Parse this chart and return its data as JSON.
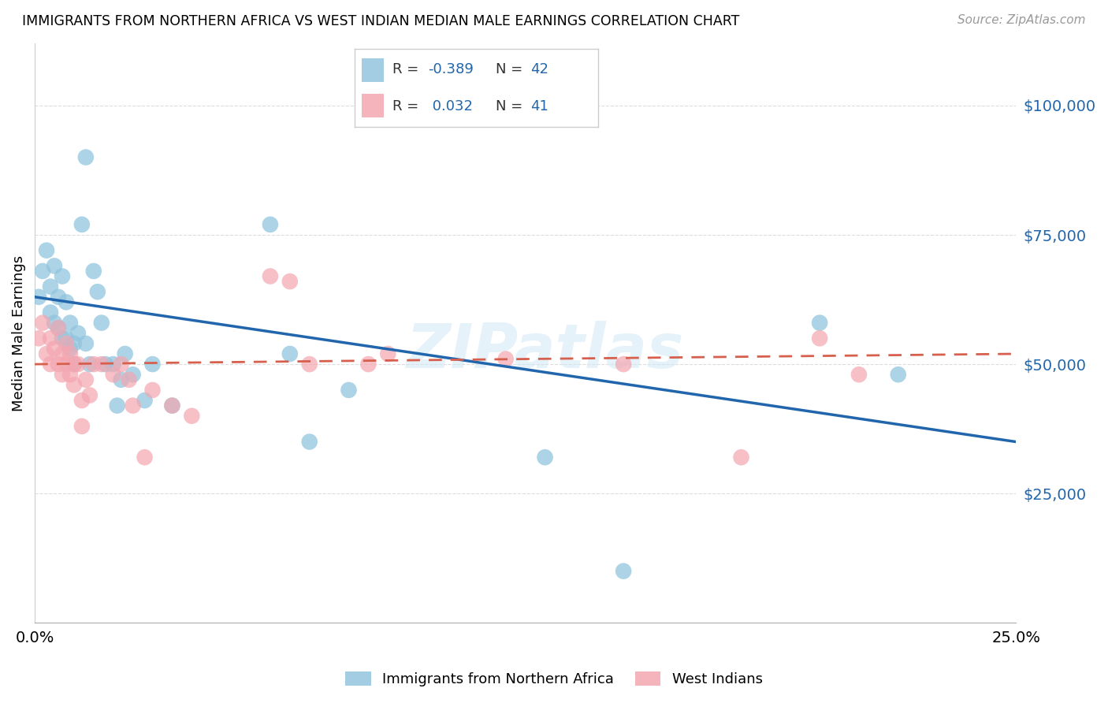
{
  "title": "IMMIGRANTS FROM NORTHERN AFRICA VS WEST INDIAN MEDIAN MALE EARNINGS CORRELATION CHART",
  "source": "Source: ZipAtlas.com",
  "ylabel": "Median Male Earnings",
  "ylim": [
    0,
    112000
  ],
  "xlim": [
    0.0,
    0.25
  ],
  "yticks": [
    25000,
    50000,
    75000,
    100000
  ],
  "ytick_labels": [
    "$25,000",
    "$50,000",
    "$75,000",
    "$100,000"
  ],
  "xtick_vals": [
    0.0,
    0.25
  ],
  "xtick_labels": [
    "0.0%",
    "25.0%"
  ],
  "blue_color": "#92C5DE",
  "blue_line_color": "#2166AC",
  "pink_color": "#F4A6B0",
  "pink_line_color": "#D6604D",
  "watermark": "ZIPatlas",
  "grid_color": "#DDDDDD",
  "blue_x": [
    0.001,
    0.002,
    0.003,
    0.004,
    0.004,
    0.005,
    0.005,
    0.006,
    0.006,
    0.007,
    0.007,
    0.008,
    0.008,
    0.009,
    0.009,
    0.01,
    0.01,
    0.011,
    0.012,
    0.013,
    0.013,
    0.014,
    0.015,
    0.016,
    0.017,
    0.018,
    0.02,
    0.021,
    0.022,
    0.023,
    0.025,
    0.028,
    0.03,
    0.035,
    0.06,
    0.065,
    0.07,
    0.08,
    0.13,
    0.15,
    0.2,
    0.22
  ],
  "blue_y": [
    63000,
    68000,
    72000,
    65000,
    60000,
    69000,
    58000,
    63000,
    57000,
    67000,
    55000,
    62000,
    55000,
    58000,
    53000,
    54000,
    50000,
    56000,
    77000,
    90000,
    54000,
    50000,
    68000,
    64000,
    58000,
    50000,
    50000,
    42000,
    47000,
    52000,
    48000,
    43000,
    50000,
    42000,
    77000,
    52000,
    35000,
    45000,
    32000,
    10000,
    58000,
    48000
  ],
  "pink_x": [
    0.001,
    0.002,
    0.003,
    0.004,
    0.004,
    0.005,
    0.006,
    0.006,
    0.007,
    0.007,
    0.008,
    0.008,
    0.009,
    0.009,
    0.01,
    0.01,
    0.011,
    0.012,
    0.012,
    0.013,
    0.014,
    0.015,
    0.017,
    0.02,
    0.022,
    0.024,
    0.025,
    0.028,
    0.03,
    0.035,
    0.04,
    0.06,
    0.065,
    0.07,
    0.085,
    0.09,
    0.12,
    0.15,
    0.18,
    0.2,
    0.21
  ],
  "pink_y": [
    55000,
    58000,
    52000,
    50000,
    55000,
    53000,
    57000,
    50000,
    48000,
    52000,
    54000,
    50000,
    48000,
    52000,
    46000,
    50000,
    50000,
    43000,
    38000,
    47000,
    44000,
    50000,
    50000,
    48000,
    50000,
    47000,
    42000,
    32000,
    45000,
    42000,
    40000,
    67000,
    66000,
    50000,
    50000,
    52000,
    51000,
    50000,
    32000,
    55000,
    48000
  ],
  "blue_line_x0": 0.0,
  "blue_line_y0": 63000,
  "blue_line_x1": 0.25,
  "blue_line_y1": 35000,
  "pink_line_x0": 0.0,
  "pink_line_y0": 50000,
  "pink_line_x1": 0.25,
  "pink_line_y1": 52000
}
